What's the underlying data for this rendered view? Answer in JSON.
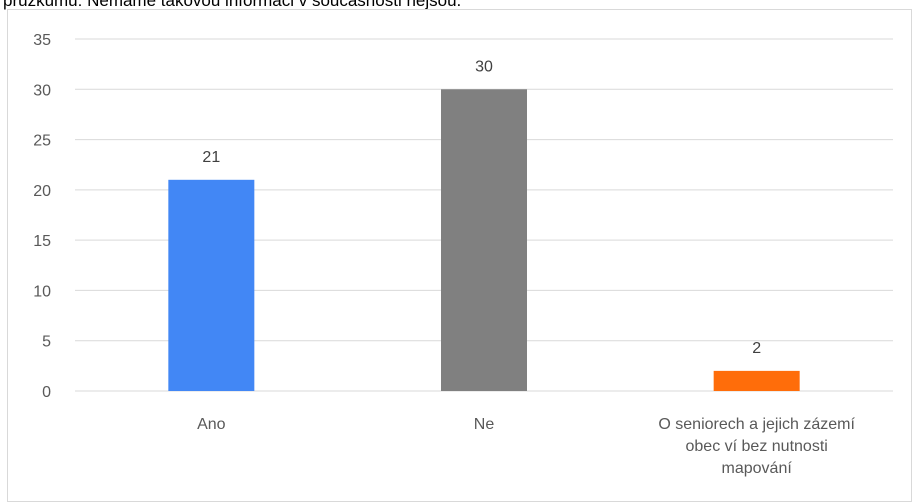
{
  "caption_fragment": "průzkumu: Nemáme takovou informaci v současnosti nejsou.",
  "chart_data": {
    "type": "bar",
    "categories": [
      "Ano",
      "Ne",
      "O seniorech a jejich zázemí obec ví bez nutnosti mapování"
    ],
    "category_lines": [
      [
        "Ano"
      ],
      [
        "Ne"
      ],
      [
        "O seniorech a jejich zázemí",
        "obec ví bez nutnosti",
        "mapování"
      ]
    ],
    "values": [
      21,
      30,
      2
    ],
    "data_labels": [
      "21",
      "30",
      "2"
    ],
    "colors": [
      "#4287f5",
      "#808080",
      "#ff6d0a"
    ],
    "ylim": [
      0,
      35
    ],
    "yticks": [
      0,
      5,
      10,
      15,
      20,
      25,
      30,
      35
    ],
    "grid": true,
    "legend": "none"
  }
}
